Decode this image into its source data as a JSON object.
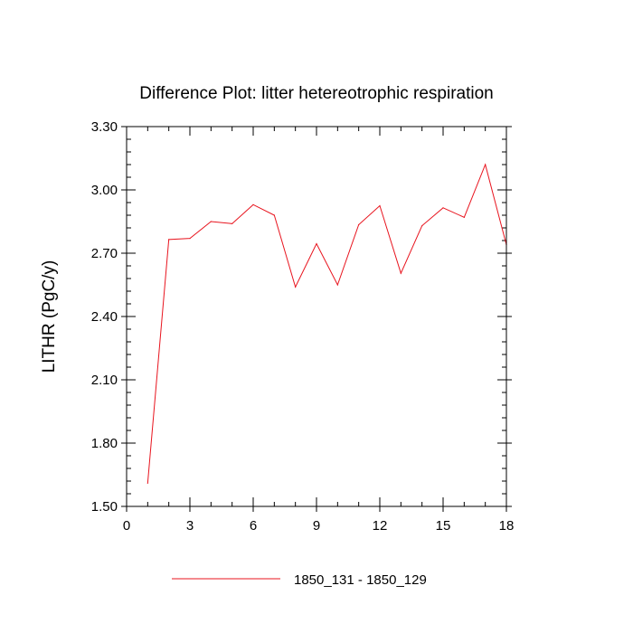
{
  "chart_data": {
    "type": "line",
    "title": "Difference Plot: litter hetereotrophic respiration",
    "xlabel": "",
    "ylabel": "LITHR  (PgC/y)",
    "xlim": [
      0,
      18
    ],
    "ylim": [
      1.5,
      3.3
    ],
    "x_ticks": [
      0,
      3,
      6,
      9,
      12,
      15,
      18
    ],
    "x_tick_labels": [
      "0",
      "3",
      "6",
      "9",
      "12",
      "15",
      "18"
    ],
    "y_ticks": [
      1.5,
      1.8,
      2.1,
      2.4,
      2.7,
      3.0,
      3.3
    ],
    "y_tick_labels": [
      "1.50",
      "1.80",
      "2.10",
      "2.40",
      "2.70",
      "3.00",
      "3.30"
    ],
    "grid": false,
    "legend_position": "bottom-center",
    "series": [
      {
        "name": "1850_131 - 1850_129",
        "color": "#e8141e",
        "x": [
          1,
          2,
          3,
          4,
          5,
          6,
          7,
          8,
          9,
          10,
          11,
          12,
          13,
          14,
          15,
          16,
          17,
          18
        ],
        "y": [
          1.61,
          2.765,
          2.77,
          2.85,
          2.84,
          2.93,
          2.88,
          2.54,
          2.745,
          2.55,
          2.835,
          2.925,
          2.605,
          2.83,
          2.915,
          2.87,
          3.12,
          2.74
        ]
      }
    ]
  }
}
